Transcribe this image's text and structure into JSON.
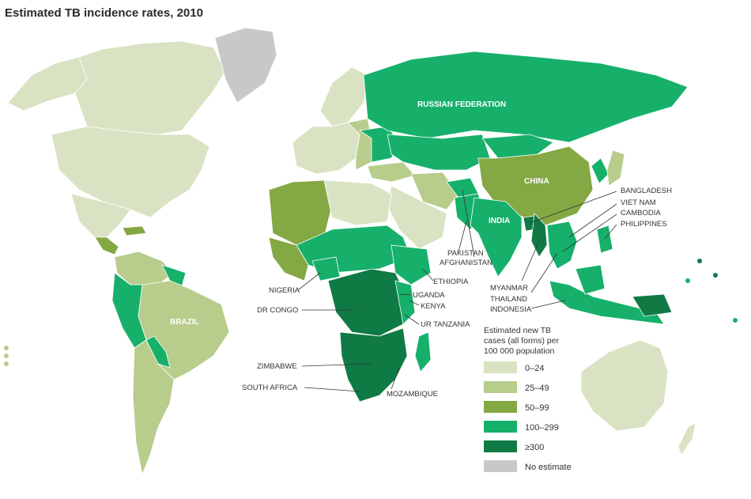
{
  "title": "Estimated TB incidence rates, 2010",
  "map_data": {
    "type": "choropleth",
    "region": "world",
    "colors": {
      "c0": "#d9e3c3",
      "c1": "#b8cc8c",
      "c2": "#84a844",
      "c3": "#16b06a",
      "c4": "#107a44",
      "nodata": "#c8c8c8"
    },
    "country_labels": {
      "russia": "RUSSIAN FEDERATION",
      "china": "CHINA",
      "india": "INDIA",
      "brazil": "BRAZIL",
      "bangladesh": "BANGLADESH",
      "vietnam": "VIET NAM",
      "cambodia": "CAMBODIA",
      "philippines": "PHILIPPINES",
      "pakistan": "PAKISTAN",
      "afghanistan": "AFGHANISTAN",
      "ethiopia": "ETHIOPIA",
      "uganda": "UGANDA",
      "kenya": "KENYA",
      "tanzania": "UR TANZANIA",
      "nigeria": "NIGERIA",
      "drcongo": "DR CONGO",
      "myanmar": "MYANMAR",
      "thailand": "THAILAND",
      "indonesia": "INDONESIA",
      "zimbabwe": "ZIMBABWE",
      "southafrica": "SOUTH AFRICA",
      "mozambique": "MOZAMBIQUE"
    }
  },
  "legend": {
    "title_lines": [
      "Estimated new TB",
      "cases (all forms) per",
      "100 000 population"
    ],
    "items": [
      {
        "label": "0–24",
        "color": "#d9e3c3"
      },
      {
        "label": "25–49",
        "color": "#b8cc8c"
      },
      {
        "label": "50–99",
        "color": "#84a844"
      },
      {
        "label": "100–299",
        "color": "#16b06a"
      },
      {
        "label": "≥300",
        "color": "#107a44"
      },
      {
        "label": "No estimate",
        "color": "#c8c8c8"
      }
    ]
  }
}
